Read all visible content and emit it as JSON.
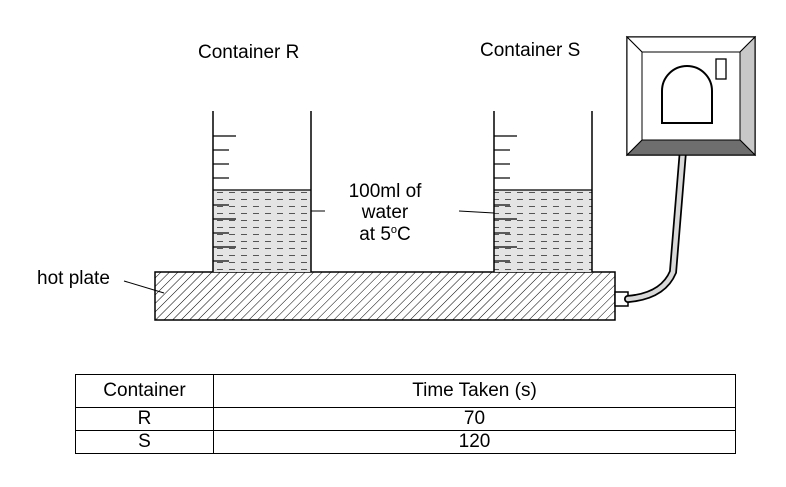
{
  "diagram": {
    "container_r_label": "Container R",
    "container_s_label": "Container S",
    "water_label_line1": "100ml of",
    "water_label_line2": "water",
    "water_label_line3_prefix": "at 5",
    "water_label_degree": "o",
    "water_label_line3_suffix": "C",
    "hot_plate_label": "hot plate"
  },
  "table": {
    "headers": [
      "Container",
      "Time Taken (s)"
    ],
    "rows": [
      {
        "container": "R",
        "time": "70"
      },
      {
        "container": "S",
        "time": "120"
      }
    ]
  }
}
